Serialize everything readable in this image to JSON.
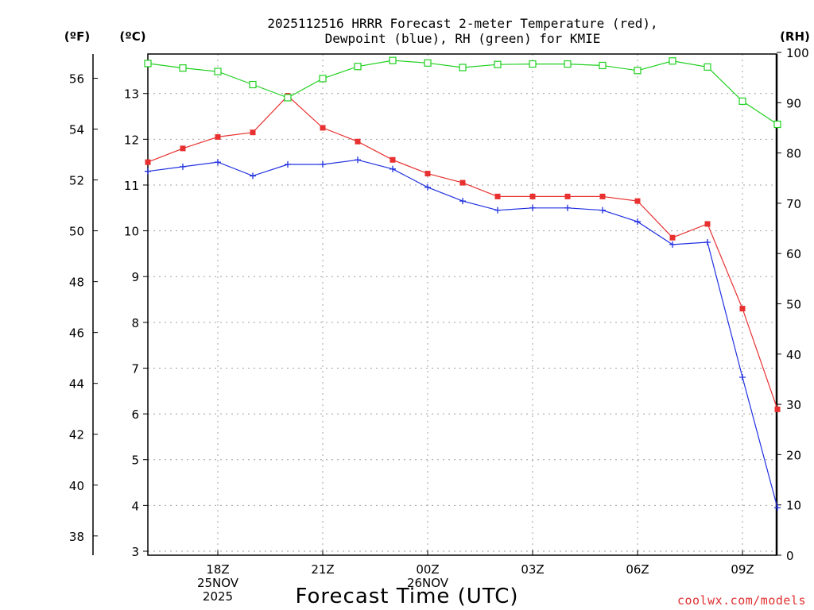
{
  "chart_data": {
    "type": "line",
    "title_line1": "2025112516 HRRR Forecast 2-meter Temperature (red),",
    "title_line2": "Dewpoint (blue), RH (green) for KMIE",
    "unit_labels": {
      "fahrenheit": "(ºF)",
      "celsius": "(ºC)",
      "rh": "(RH)"
    },
    "xlabel": "Forecast Time (UTC)",
    "credit": "coolwx.com/models",
    "x_hours": [
      0,
      1,
      2,
      3,
      4,
      5,
      6,
      7,
      8,
      9,
      10,
      11,
      12,
      13,
      14,
      15,
      16,
      17,
      18
    ],
    "x_ticks": [
      {
        "hour": 2,
        "lines": [
          "18Z",
          "25NOV",
          "2025"
        ]
      },
      {
        "hour": 5,
        "lines": [
          "21Z"
        ]
      },
      {
        "hour": 8,
        "lines": [
          "00Z",
          "26NOV"
        ]
      },
      {
        "hour": 11,
        "lines": [
          "03Z"
        ]
      },
      {
        "hour": 14,
        "lines": [
          "06Z"
        ]
      },
      {
        "hour": 17,
        "lines": [
          "09Z"
        ]
      }
    ],
    "y_celsius": {
      "min": 3,
      "max": 13.8,
      "ticks": [
        3,
        4,
        5,
        6,
        7,
        8,
        9,
        10,
        11,
        12,
        13
      ]
    },
    "y_fahrenheit_ticks": [
      38,
      40,
      42,
      44,
      46,
      48,
      50,
      52,
      54,
      56
    ],
    "y_rh": {
      "min": 0,
      "max": 100,
      "ticks": [
        0,
        10,
        20,
        30,
        40,
        50,
        60,
        70,
        80,
        90,
        100
      ]
    },
    "series": [
      {
        "name": "Temperature",
        "color": "#e83030",
        "axis": "celsius",
        "marker": "filled-square",
        "values": [
          11.5,
          11.8,
          12.05,
          12.15,
          12.95,
          12.25,
          11.95,
          11.55,
          11.25,
          11.05,
          10.75,
          10.75,
          10.75,
          10.75,
          10.65,
          9.85,
          10.15,
          8.3,
          6.1
        ]
      },
      {
        "name": "Dewpoint",
        "color": "#2030e0",
        "axis": "celsius",
        "marker": "plus",
        "values": [
          11.3,
          11.4,
          11.5,
          11.2,
          11.45,
          11.45,
          11.55,
          11.35,
          10.95,
          10.65,
          10.45,
          10.5,
          10.5,
          10.45,
          10.2,
          9.7,
          9.75,
          6.8,
          3.95
        ]
      },
      {
        "name": "RH",
        "color": "#20d020",
        "axis": "rh",
        "marker": "open-square",
        "values": [
          97.8,
          96.9,
          96.2,
          93.6,
          91.0,
          94.8,
          97.2,
          98.4,
          97.9,
          97.0,
          97.6,
          97.7,
          97.7,
          97.4,
          96.4,
          98.3,
          97.1,
          90.3,
          85.7
        ]
      }
    ]
  }
}
